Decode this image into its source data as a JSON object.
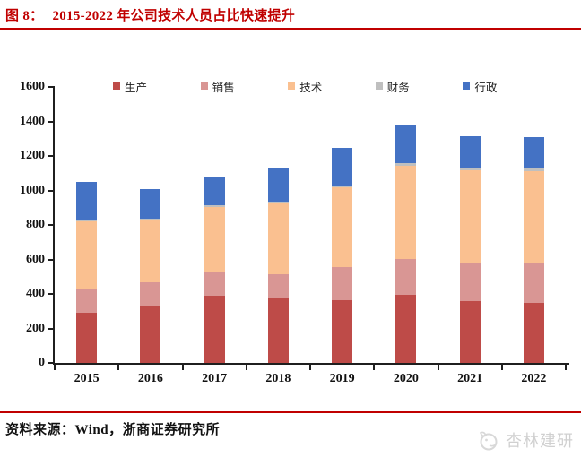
{
  "header": {
    "figure_label": "图 8：",
    "title": "2015-2022 年公司技术人员占比快速提升"
  },
  "footer": {
    "source": "资料来源：Wind，浙商证券研究所",
    "watermark_text": "杏林建研"
  },
  "colors": {
    "accent_red": "#C00000",
    "axis_black": "#1f1f1f",
    "watermark_gray": "#d0d0d0"
  },
  "chart_data": {
    "type": "bar",
    "stacked": true,
    "title": "",
    "xlabel": "",
    "ylabel": "",
    "categories": [
      "2015",
      "2016",
      "2017",
      "2018",
      "2019",
      "2020",
      "2021",
      "2022"
    ],
    "series": [
      {
        "name": "生产",
        "color": "#BE4B48",
        "values": [
          290,
          325,
          390,
          375,
          365,
          395,
          360,
          350
        ]
      },
      {
        "name": "销售",
        "color": "#D99694",
        "values": [
          140,
          145,
          140,
          140,
          190,
          210,
          220,
          225
        ]
      },
      {
        "name": "技术",
        "color": "#FAC090",
        "values": [
          390,
          355,
          375,
          410,
          465,
          540,
          535,
          535
        ]
      },
      {
        "name": "财务",
        "color": "#BFBFBF",
        "values": [
          10,
          10,
          10,
          10,
          10,
          15,
          15,
          15
        ]
      },
      {
        "name": "行政",
        "color": "#4472C4",
        "values": [
          220,
          175,
          160,
          190,
          215,
          215,
          185,
          185
        ]
      }
    ],
    "totals": [
      1050,
      1010,
      1075,
      1125,
      1245,
      1375,
      1315,
      1310
    ],
    "ylim": [
      0,
      1600
    ],
    "ytick_step": 200,
    "grid": false,
    "legend_position": "top"
  }
}
